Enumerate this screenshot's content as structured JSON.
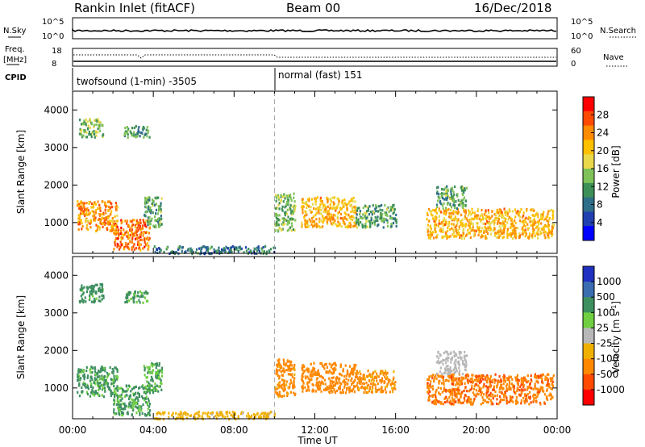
{
  "header": {
    "station": "Rankin Inlet (fitACF)",
    "beam": "Beam 00",
    "date": "16/Dec/2018"
  },
  "status_panels": {
    "nsky_label": "N.Sky",
    "nsky_ticks": [
      "10^5",
      "10^0"
    ],
    "nsearch_label": "N.Search",
    "nsearch_ticks": [
      "10^5",
      "10^0"
    ],
    "freq_label": "Freq.",
    "freq_unit": "[MHz]",
    "freq_ticks": [
      "18",
      "8"
    ],
    "nave_label": "Nave",
    "nave_ticks": [
      "60",
      "0"
    ],
    "cpid_label": "CPID",
    "cpid_segments": [
      {
        "text": "twofsound (1-min) -3505",
        "start_hour": 0,
        "end_hour": 10
      },
      {
        "text": "normal (fast) 151",
        "start_hour": 10,
        "end_hour": 24
      }
    ]
  },
  "colorbars": {
    "power": {
      "label": "Power [dB]",
      "ticks": [
        "28",
        "24",
        "20",
        "16",
        "12",
        "8",
        "4"
      ],
      "colors": [
        "#ff0000",
        "#ff4b00",
        "#ff8c00",
        "#ffc000",
        "#e8d84a",
        "#7fc25a",
        "#3c8f57",
        "#2f6e88",
        "#2040b0",
        "#0000ff"
      ]
    },
    "velocity": {
      "label": "Velocity [m s",
      "label_sup": "-1",
      "label_end": "]",
      "ticks": [
        "1000",
        "500",
        "100",
        "25",
        "-25",
        "-100",
        "-500",
        "-1000"
      ],
      "colors": [
        "#2030c0",
        "#3a6cb0",
        "#3e8f60",
        "#6fcf40",
        "#b8b8b8",
        "#f0b000",
        "#ff8800",
        "#ff4a00",
        "#ff0000"
      ]
    }
  },
  "chart_data": {
    "type": "heatmap",
    "xlabel": "Time UT",
    "x_ticks": [
      "00:00",
      "04:00",
      "08:00",
      "12:00",
      "16:00",
      "20:00",
      "00:00"
    ],
    "xlim_hours": [
      0,
      24
    ],
    "ylabel": "Slant Range [km]",
    "y_ticks": [
      4000,
      3000,
      2000,
      1000
    ],
    "ylim_km": [
      180,
      4500
    ],
    "panels": [
      {
        "name": "Power",
        "unit": "dB",
        "regions": [
          {
            "t0": 0.2,
            "t1": 2.2,
            "r0": 800,
            "r1": 1600,
            "value": 24
          },
          {
            "t0": 2.0,
            "t1": 3.8,
            "r0": 300,
            "r1": 1100,
            "value": 26
          },
          {
            "t0": 0.3,
            "t1": 1.5,
            "r0": 3300,
            "r1": 3800,
            "value": 14
          },
          {
            "t0": 2.5,
            "t1": 3.8,
            "r0": 3300,
            "r1": 3600,
            "value": 10
          },
          {
            "t0": 3.5,
            "t1": 4.4,
            "r0": 900,
            "r1": 1700,
            "value": 12
          },
          {
            "t0": 4.0,
            "t1": 10.0,
            "r0": 200,
            "r1": 400,
            "value": 8
          },
          {
            "t0": 10.0,
            "t1": 11.0,
            "r0": 800,
            "r1": 1800,
            "value": 14
          },
          {
            "t0": 11.3,
            "t1": 14.0,
            "r0": 900,
            "r1": 1700,
            "value": 22
          },
          {
            "t0": 14.0,
            "t1": 16.0,
            "r0": 900,
            "r1": 1500,
            "value": 12
          },
          {
            "t0": 17.5,
            "t1": 23.8,
            "r0": 600,
            "r1": 1400,
            "value": 22
          },
          {
            "t0": 18.0,
            "t1": 19.5,
            "r0": 1400,
            "r1": 2000,
            "value": 12
          }
        ]
      },
      {
        "name": "Velocity",
        "unit": "m s-1",
        "regions": [
          {
            "t0": 0.2,
            "t1": 2.2,
            "r0": 800,
            "r1": 1600,
            "value": 150
          },
          {
            "t0": 2.0,
            "t1": 3.8,
            "r0": 300,
            "r1": 1100,
            "value": 120
          },
          {
            "t0": 0.3,
            "t1": 1.5,
            "r0": 3300,
            "r1": 3800,
            "value": 200
          },
          {
            "t0": 2.5,
            "t1": 3.8,
            "r0": 3300,
            "r1": 3600,
            "value": 150
          },
          {
            "t0": 3.5,
            "t1": 4.4,
            "r0": 900,
            "r1": 1700,
            "value": 120
          },
          {
            "t0": 4.0,
            "t1": 10.0,
            "r0": 200,
            "r1": 400,
            "value": -50
          },
          {
            "t0": 10.0,
            "t1": 11.0,
            "r0": 800,
            "r1": 1800,
            "value": -200
          },
          {
            "t0": 11.3,
            "t1": 14.0,
            "r0": 900,
            "r1": 1700,
            "value": -300
          },
          {
            "t0": 14.0,
            "t1": 16.0,
            "r0": 900,
            "r1": 1500,
            "value": -150
          },
          {
            "t0": 17.5,
            "t1": 23.8,
            "r0": 600,
            "r1": 1400,
            "value": -400
          },
          {
            "t0": 18.0,
            "t1": 19.5,
            "r0": 1400,
            "r1": 2000,
            "value": 0
          }
        ]
      }
    ]
  }
}
